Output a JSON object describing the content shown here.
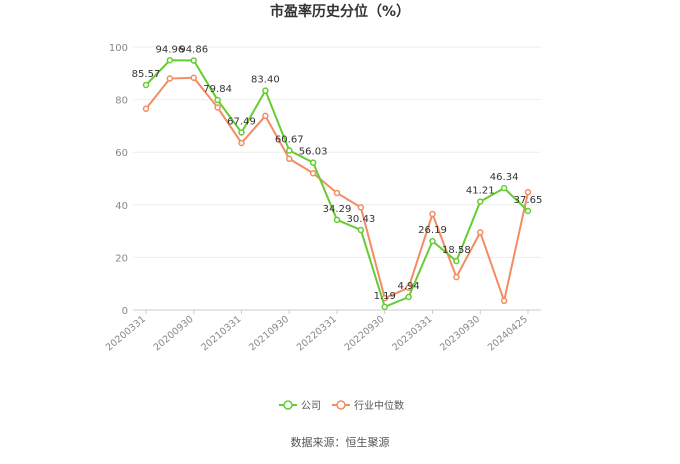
{
  "chart_data": {
    "type": "line",
    "title": "市盈率历史分位（%）",
    "source": "数据来源：恒生聚源",
    "ylim": [
      0,
      100
    ],
    "yticks": [
      0,
      20,
      40,
      60,
      80,
      100
    ],
    "x": [
      "20200331",
      "20200630",
      "20200930",
      "20201231",
      "20210331",
      "20210630",
      "20210930",
      "20211231",
      "20220331",
      "20220630",
      "20220930",
      "20221231",
      "20230331",
      "20230630",
      "20230930",
      "20231231",
      "20240425"
    ],
    "x_tick_labels": [
      "20200331",
      "20200930",
      "20210331",
      "20210930",
      "20220331",
      "20220930",
      "20230331",
      "20230930",
      "20240425"
    ],
    "x_tick_indices": [
      0,
      2,
      4,
      6,
      8,
      10,
      12,
      14,
      16
    ],
    "grid": true,
    "legend": "bottom",
    "series": [
      {
        "name": "公司",
        "color": "#66cc33",
        "show_labels": true,
        "values": [
          85.57,
          94.96,
          94.86,
          79.84,
          67.49,
          83.4,
          60.67,
          56.03,
          34.29,
          30.43,
          1.19,
          4.94,
          26.19,
          18.58,
          41.21,
          46.34,
          37.65
        ],
        "labels": [
          "85.57",
          "94.96",
          "94.86",
          "79.84",
          "67.49",
          "83.40",
          "60.67",
          "56.03",
          "34.29",
          "30.43",
          "1.19",
          "4.94",
          "26.19",
          "18.58",
          "41.21",
          "46.34",
          "37.65"
        ]
      },
      {
        "name": "行业中位数",
        "color": "#f28c63",
        "show_labels": false,
        "values": [
          76.5,
          88.0,
          88.3,
          77.0,
          63.5,
          73.8,
          57.5,
          52.0,
          44.5,
          39.0,
          4.5,
          8.5,
          36.5,
          12.5,
          29.5,
          3.5,
          44.8
        ]
      }
    ]
  }
}
